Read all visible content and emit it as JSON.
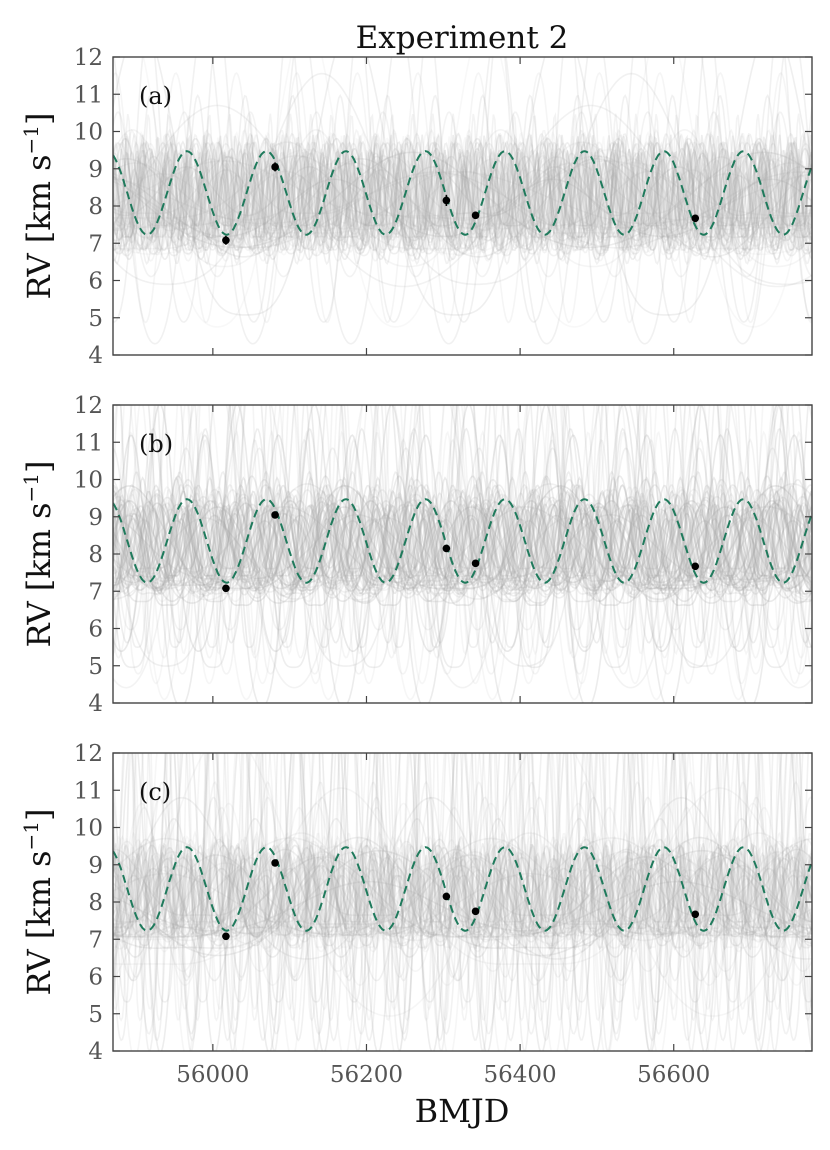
{
  "figure": {
    "title": "Experiment 2",
    "xlabel": "BMJD",
    "ylabel_main": "RV [km s",
    "ylabel_sup": "−1",
    "ylabel_close": "]"
  },
  "chart_data": [
    {
      "type": "line",
      "panel": "(a)",
      "title": "Experiment 2",
      "xlabel": "",
      "ylabel": "RV [km s−1]",
      "xlim": [
        55870,
        56780
      ],
      "ylim": [
        4,
        12
      ],
      "yticks": [
        4,
        5,
        6,
        7,
        8,
        9,
        10,
        11,
        12
      ],
      "xticks": [
        56000,
        56200,
        56400,
        56600
      ],
      "xtick_labels_visible": false,
      "data_points": [
        {
          "x": 56017,
          "y": 7.08,
          "err": 0.12
        },
        {
          "x": 56081,
          "y": 9.05,
          "err": 0.12
        },
        {
          "x": 56304,
          "y": 8.15,
          "err": 0.15
        },
        {
          "x": 56342,
          "y": 7.75,
          "err": 0.1
        },
        {
          "x": 56628,
          "y": 7.67,
          "err": 0.05
        }
      ],
      "model": {
        "style": "dashed",
        "color": "#1f7a5c",
        "mean": 8.35,
        "amplitude": 1.12,
        "period": 103.5,
        "phase_zero_x": 56018
      },
      "samples": {
        "color": "#aaaaaa",
        "count": 70,
        "description": "posterior orbit samples"
      }
    },
    {
      "type": "line",
      "panel": "(b)",
      "xlabel": "",
      "ylabel": "RV [km s−1]",
      "xlim": [
        55870,
        56780
      ],
      "ylim": [
        4,
        12
      ],
      "yticks": [
        4,
        5,
        6,
        7,
        8,
        9,
        10,
        11,
        12
      ],
      "xticks": [
        56000,
        56200,
        56400,
        56600
      ],
      "xtick_labels_visible": false,
      "data_points": [
        {
          "x": 56017,
          "y": 7.08,
          "err": 0.05
        },
        {
          "x": 56081,
          "y": 9.05,
          "err": 0.05
        },
        {
          "x": 56304,
          "y": 8.15,
          "err": 0.05
        },
        {
          "x": 56342,
          "y": 7.75,
          "err": 0.05
        },
        {
          "x": 56628,
          "y": 7.67,
          "err": 0.05
        }
      ],
      "model": {
        "style": "dashed",
        "color": "#1f7a5c",
        "mean": 8.35,
        "amplitude": 1.12,
        "period": 103.5,
        "phase_zero_x": 56018
      },
      "samples": {
        "color": "#aaaaaa",
        "count": 70
      }
    },
    {
      "type": "line",
      "panel": "(c)",
      "xlabel": "BMJD",
      "ylabel": "RV [km s−1]",
      "xlim": [
        55870,
        56780
      ],
      "ylim": [
        4,
        12
      ],
      "yticks": [
        4,
        5,
        6,
        7,
        8,
        9,
        10,
        11,
        12
      ],
      "xticks": [
        56000,
        56200,
        56400,
        56600
      ],
      "xtick_labels_visible": true,
      "data_points": [
        {
          "x": 56017,
          "y": 7.08,
          "err": 0.05
        },
        {
          "x": 56081,
          "y": 9.05,
          "err": 0.05
        },
        {
          "x": 56304,
          "y": 8.15,
          "err": 0.05
        },
        {
          "x": 56342,
          "y": 7.75,
          "err": 0.05
        },
        {
          "x": 56628,
          "y": 7.67,
          "err": 0.05
        }
      ],
      "model": {
        "style": "dashed",
        "color": "#1f7a5c",
        "mean": 8.35,
        "amplitude": 1.12,
        "period": 103.5,
        "phase_zero_x": 56018
      },
      "samples": {
        "color": "#aaaaaa",
        "count": 70
      }
    }
  ]
}
